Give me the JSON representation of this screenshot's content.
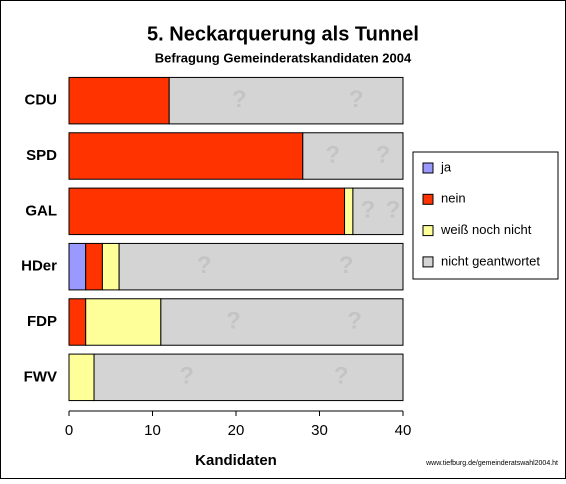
{
  "chart_data": {
    "type": "stacked-barh",
    "title": "5. Neckarquerung als Tunnel",
    "subtitle": "Befragung Gemeinderatskandidaten 2004",
    "xlabel": "Kandidaten",
    "source": "www.tiefburg.de/gemeinderatswahl2004.ht",
    "categories": [
      "CDU",
      "SPD",
      "GAL",
      "HDer",
      "FDP",
      "FWV"
    ],
    "series": [
      {
        "name": "ja",
        "color": "#9999ff",
        "values": [
          0,
          0,
          0,
          2,
          0,
          0
        ]
      },
      {
        "name": "nein",
        "color": "#ff3300",
        "values": [
          12,
          28,
          33,
          2,
          2,
          0
        ]
      },
      {
        "name": "weiß noch nicht",
        "color": "#ffff99",
        "values": [
          0,
          0,
          1,
          2,
          9,
          3
        ]
      },
      {
        "name": "nicht geantwortet",
        "color": "#d4d4d4",
        "values": [
          28,
          12,
          6,
          34,
          29,
          37
        ]
      }
    ],
    "gap_marker": "?",
    "xlim": [
      0,
      40
    ],
    "xticks": [
      0,
      10,
      20,
      30,
      40
    ],
    "legend": "right"
  }
}
